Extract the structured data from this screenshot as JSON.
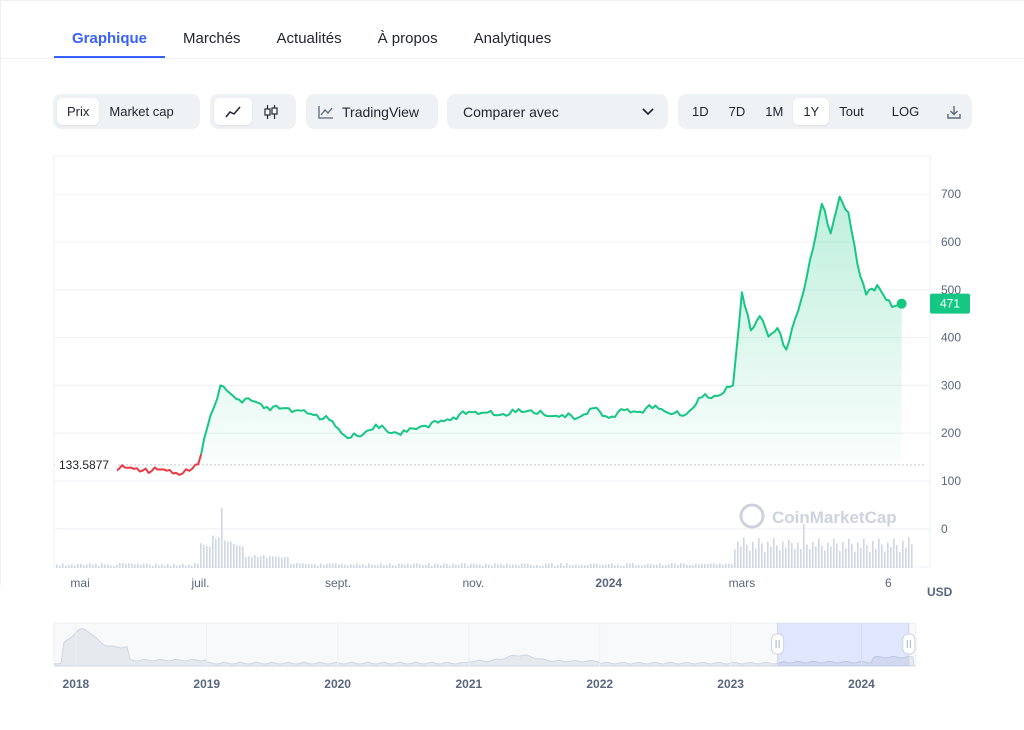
{
  "tabs": [
    {
      "label": "Graphique",
      "active": true
    },
    {
      "label": "Marchés",
      "active": false
    },
    {
      "label": "Actualités",
      "active": false
    },
    {
      "label": "À propos",
      "active": false
    },
    {
      "label": "Analytiques",
      "active": false
    }
  ],
  "toolbar": {
    "metric_options": [
      "Prix",
      "Market cap"
    ],
    "metric_selected": "Prix",
    "chart_styles": [
      {
        "icon": "line-chart-icon",
        "selected": true
      },
      {
        "icon": "candlestick-icon",
        "selected": false
      }
    ],
    "tradingview_label": "TradingView",
    "compare_label": "Comparer avec",
    "ranges": [
      "1D",
      "7D",
      "1M",
      "1Y",
      "Tout"
    ],
    "range_selected": "1Y",
    "log_label": "LOG",
    "download_icon": "download-icon"
  },
  "watermark": "CoinMarketCap",
  "currency": "USD",
  "colors": {
    "up": "#16c784",
    "down": "#ea3943",
    "accent": "#3861fb",
    "volume": "#cfd6e4"
  },
  "chart_data": {
    "type": "line",
    "series": [
      {
        "x": [
          "2023-05-12",
          "2023-05-20",
          "2023-05-28",
          "2023-06-05",
          "2023-06-13",
          "2023-06-20",
          "2023-06-26",
          "2023-06-30",
          "2023-07-04",
          "2023-07-10",
          "2023-07-17",
          "2023-07-24",
          "2023-07-31",
          "2023-08-07",
          "2023-08-14",
          "2023-08-21",
          "2023-08-28",
          "2023-09-04",
          "2023-09-11",
          "2023-09-18",
          "2023-09-25",
          "2023-10-02",
          "2023-10-09",
          "2023-10-16",
          "2023-10-23",
          "2023-10-30",
          "2023-11-06",
          "2023-11-13",
          "2023-11-20",
          "2023-11-27",
          "2023-12-04",
          "2023-12-11",
          "2023-12-18",
          "2023-12-25",
          "2024-01-01",
          "2024-01-08",
          "2024-01-15",
          "2024-01-22",
          "2024-01-29",
          "2024-02-05",
          "2024-02-12",
          "2024-02-19",
          "2024-02-26",
          "2024-03-01",
          "2024-03-05",
          "2024-03-09",
          "2024-03-13",
          "2024-03-17",
          "2024-03-21",
          "2024-03-25",
          "2024-03-29",
          "2024-04-02",
          "2024-04-06",
          "2024-04-10",
          "2024-04-14",
          "2024-04-18",
          "2024-04-22",
          "2024-04-26",
          "2024-05-01",
          "2024-05-05",
          "2024-05-09",
          "2024-05-12"
        ],
        "y": [
          133.5877,
          126,
          128,
          122,
          124,
          117,
          121,
          135,
          210,
          300,
          272,
          268,
          255,
          252,
          248,
          238,
          228,
          195,
          193,
          218,
          200,
          203,
          215,
          222,
          233,
          245,
          243,
          238,
          244,
          248,
          236,
          238,
          232,
          252,
          232,
          248,
          245,
          258,
          240,
          240,
          275,
          278,
          300,
          495,
          415,
          445,
          402,
          420,
          375,
          440,
          500,
          585,
          680,
          618,
          695,
          662,
          555,
          490,
          510,
          479,
          466,
          471
        ]
      }
    ],
    "current_price": 471,
    "start_price_label": "133.5877",
    "yticks": [
      0,
      100,
      200,
      300,
      400,
      500,
      600,
      700
    ],
    "xticks": [
      {
        "label": "mai",
        "x": "2023-05-01",
        "bold": false
      },
      {
        "label": "juil.",
        "x": "2023-07-01",
        "bold": false
      },
      {
        "label": "sept.",
        "x": "2023-09-01",
        "bold": false
      },
      {
        "label": "nov.",
        "x": "2023-11-01",
        "bold": false
      },
      {
        "label": "2024",
        "x": "2024-01-01",
        "bold": true
      },
      {
        "label": "mars",
        "x": "2024-03-01",
        "bold": false
      },
      {
        "label": "6",
        "x": "2024-05-06",
        "bold": false
      }
    ],
    "xlim": [
      "2023-04-26",
      "2024-05-18"
    ],
    "ylim": [
      -80,
      780
    ],
    "y_axis_position": "right",
    "grid": true,
    "navigator": {
      "years": [
        "2018",
        "2019",
        "2020",
        "2021",
        "2022",
        "2023",
        "2024"
      ],
      "range": [
        "2017-11-01",
        "2024-06-01"
      ],
      "selection": [
        "2023-05-12",
        "2024-05-12"
      ]
    }
  }
}
